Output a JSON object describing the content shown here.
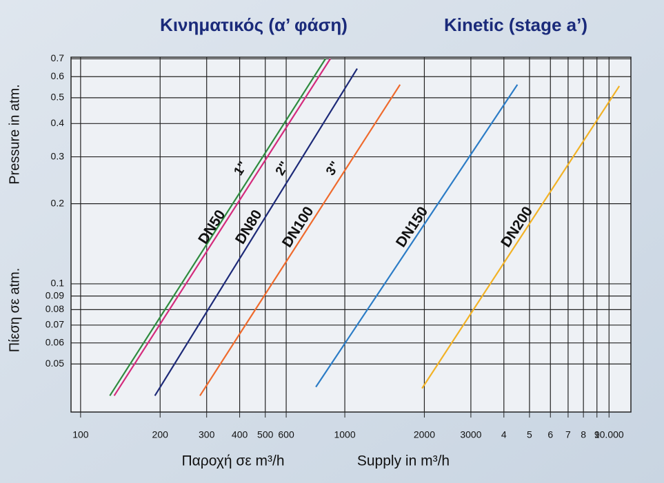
{
  "chart_data": {
    "type": "line",
    "title": "Κινηματικός (α’ φάση)",
    "subtitle": "Kinetic (stage a’)",
    "ylabel": "Pressure in atm.",
    "ylabel_alt": "Πίεση σε atm.",
    "xlabel": "Παροχή σε m³/h",
    "xlabel_alt": "Supply in  m³/h",
    "xscale": "log",
    "yscale": "log",
    "grid": true,
    "xlim": [
      92,
      12100
    ],
    "ylim": [
      0.033,
      0.71
    ],
    "xticks": [
      100,
      200,
      300,
      400,
      500,
      600,
      1000,
      2000,
      3000,
      {
        "value": 4000,
        "label": "4"
      },
      {
        "value": 5000,
        "label": "5"
      },
      {
        "value": 6000,
        "label": "6"
      },
      {
        "value": 7000,
        "label": "7"
      },
      {
        "value": 8000,
        "label": "8"
      },
      {
        "value": 9000,
        "label": "9"
      },
      {
        "value": 10000,
        "label": "10.000"
      }
    ],
    "yticks": [
      0.05,
      0.06,
      0.07,
      0.08,
      0.09,
      0.1,
      0.2,
      0.3,
      0.4,
      0.5,
      0.6,
      0.7
    ],
    "series": [
      {
        "name": "1\"",
        "color": "#2e8b3e",
        "x": [
          129,
          845
        ],
        "values": [
          0.038,
          0.7
        ]
      },
      {
        "name": "DN50",
        "color": "#d42a7c",
        "x": [
          134,
          881
        ],
        "values": [
          0.038,
          0.7
        ]
      },
      {
        "name": "DN80",
        "inch": "2\"",
        "color": "#1d2a78",
        "x": [
          191,
          1114
        ],
        "values": [
          0.038,
          0.643
        ]
      },
      {
        "name": "DN100",
        "inch": "3\"",
        "color": "#ef6a2c",
        "x": [
          283,
          1618
        ],
        "values": [
          0.038,
          0.56
        ]
      },
      {
        "name": "DN150",
        "color": "#2b7cc6",
        "x": [
          777,
          4500
        ],
        "values": [
          0.041,
          0.56
        ]
      },
      {
        "name": "DN200",
        "color": "#f2b225",
        "x": [
          1960,
          10940
        ],
        "values": [
          0.0405,
          0.553
        ]
      }
    ]
  }
}
